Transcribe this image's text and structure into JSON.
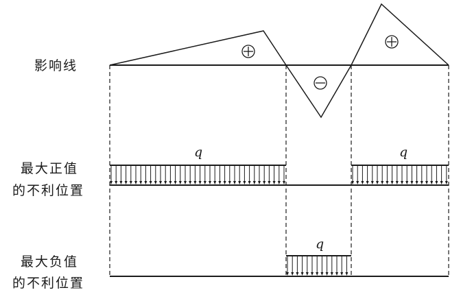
{
  "labels": {
    "influence_line": "影响线",
    "max_positive_line1": "最大正值",
    "max_positive_line2": "的不利位置",
    "max_negative_line1": "最大负值",
    "max_negative_line2": "的不利位置",
    "load_symbol": "q"
  },
  "influence_line": {
    "regions": [
      {
        "sign": "positive",
        "symbol": "⊕"
      },
      {
        "sign": "negative",
        "symbol": "⊖"
      },
      {
        "sign": "positive",
        "symbol": "⊕"
      }
    ]
  },
  "load_cases": [
    {
      "name": "max-positive",
      "loaded_regions": [
        "positive",
        "positive"
      ]
    },
    {
      "name": "max-negative",
      "loaded_regions": [
        "negative"
      ]
    }
  ],
  "colors": {
    "ink": "#1a1a1a"
  }
}
